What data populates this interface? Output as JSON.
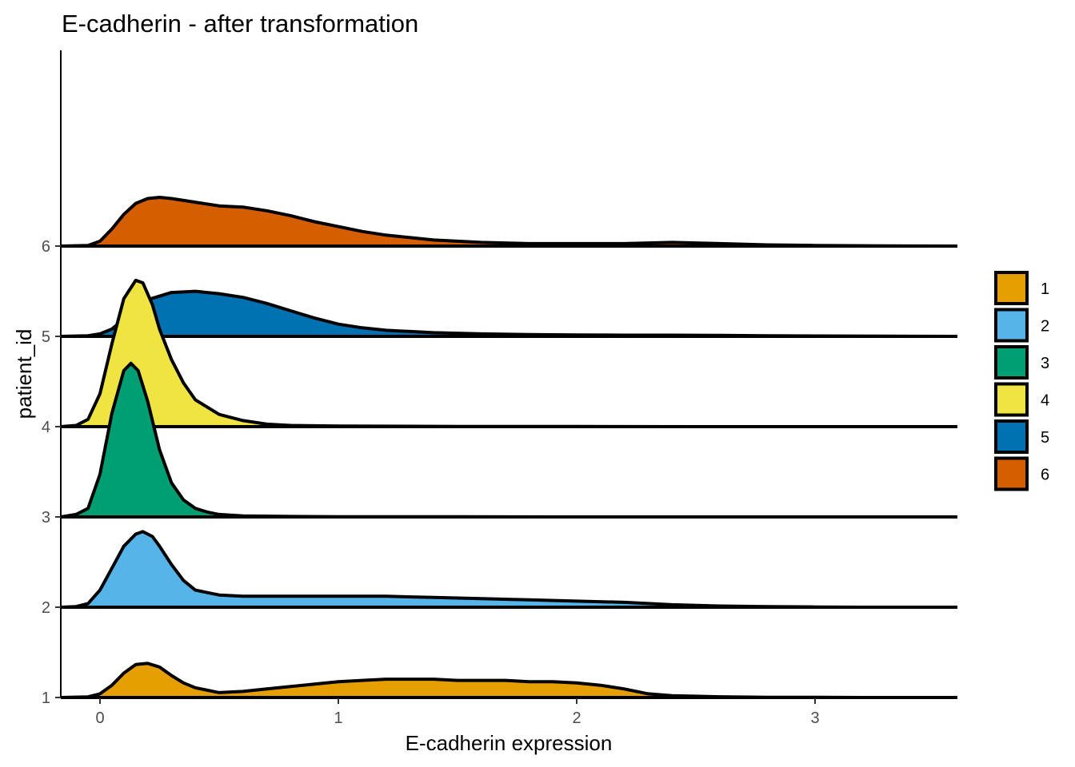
{
  "chart_data": {
    "type": "ridgeline",
    "title": "E-cadherin - after transformation",
    "xlabel": "E-cadherin expression",
    "ylabel": "patient_id",
    "xlim": [
      -0.17,
      3.6
    ],
    "x_ticks": [
      0,
      1,
      2,
      3
    ],
    "y_ticks": [
      "1",
      "2",
      "3",
      "4",
      "5",
      "6"
    ],
    "grid": false,
    "legend_position": "right",
    "series": [
      {
        "name": "1",
        "color": "#E69F00",
        "x": [
          -0.17,
          -0.05,
          0.0,
          0.05,
          0.1,
          0.15,
          0.2,
          0.25,
          0.3,
          0.35,
          0.4,
          0.5,
          0.6,
          0.7,
          0.8,
          0.9,
          1.0,
          1.1,
          1.2,
          1.3,
          1.4,
          1.5,
          1.6,
          1.7,
          1.8,
          1.9,
          2.0,
          2.1,
          2.2,
          2.3,
          2.4,
          2.6,
          2.8,
          3.0,
          3.2,
          3.4,
          3.6
        ],
        "y": [
          0,
          0.005,
          0.03,
          0.1,
          0.2,
          0.27,
          0.28,
          0.25,
          0.18,
          0.12,
          0.08,
          0.04,
          0.05,
          0.07,
          0.09,
          0.11,
          0.13,
          0.14,
          0.15,
          0.15,
          0.15,
          0.14,
          0.14,
          0.14,
          0.13,
          0.13,
          0.12,
          0.1,
          0.07,
          0.03,
          0.015,
          0.006,
          0.002,
          0.001,
          0,
          0,
          0
        ]
      },
      {
        "name": "2",
        "color": "#56B4E9",
        "x": [
          -0.17,
          -0.1,
          -0.05,
          0.0,
          0.05,
          0.1,
          0.15,
          0.18,
          0.22,
          0.25,
          0.3,
          0.35,
          0.4,
          0.5,
          0.6,
          0.8,
          1.0,
          1.2,
          1.4,
          1.6,
          1.8,
          2.0,
          2.2,
          2.4,
          2.6,
          2.8,
          3.0,
          3.2,
          3.4,
          3.6
        ],
        "y": [
          0,
          0.005,
          0.03,
          0.14,
          0.32,
          0.5,
          0.6,
          0.62,
          0.58,
          0.5,
          0.35,
          0.22,
          0.14,
          0.1,
          0.09,
          0.09,
          0.09,
          0.09,
          0.08,
          0.07,
          0.06,
          0.05,
          0.04,
          0.02,
          0.01,
          0.005,
          0.002,
          0,
          0,
          0
        ]
      },
      {
        "name": "3",
        "color": "#009E73",
        "x": [
          -0.17,
          -0.1,
          -0.05,
          0.0,
          0.05,
          0.1,
          0.13,
          0.16,
          0.2,
          0.25,
          0.3,
          0.35,
          0.4,
          0.45,
          0.5,
          0.6,
          0.8,
          1.0,
          1.5,
          2.0,
          2.5,
          3.0,
          3.6
        ],
        "y": [
          0,
          0.02,
          0.07,
          0.35,
          0.85,
          1.2,
          1.26,
          1.2,
          0.95,
          0.55,
          0.28,
          0.14,
          0.07,
          0.04,
          0.02,
          0.008,
          0.004,
          0.002,
          0.001,
          0,
          0,
          0,
          0
        ]
      },
      {
        "name": "4",
        "color": "#F0E442",
        "x": [
          -0.17,
          -0.1,
          -0.05,
          0.0,
          0.05,
          0.1,
          0.15,
          0.18,
          0.22,
          0.25,
          0.3,
          0.35,
          0.4,
          0.5,
          0.6,
          0.7,
          0.8,
          1.0,
          1.5,
          2.0,
          2.5,
          3.0,
          3.6
        ],
        "y": [
          0,
          0.01,
          0.06,
          0.27,
          0.68,
          1.05,
          1.2,
          1.18,
          1.0,
          0.8,
          0.55,
          0.36,
          0.22,
          0.1,
          0.05,
          0.02,
          0.01,
          0.005,
          0.002,
          0.001,
          0,
          0,
          0
        ]
      },
      {
        "name": "5",
        "color": "#0072B2",
        "x": [
          -0.17,
          -0.05,
          0.0,
          0.05,
          0.1,
          0.15,
          0.2,
          0.3,
          0.4,
          0.5,
          0.6,
          0.7,
          0.8,
          0.9,
          1.0,
          1.1,
          1.2,
          1.4,
          1.6,
          1.8,
          2.0,
          2.2,
          2.4,
          2.6,
          2.8,
          3.0,
          3.3,
          3.6
        ],
        "y": [
          0,
          0.005,
          0.02,
          0.06,
          0.14,
          0.23,
          0.3,
          0.36,
          0.37,
          0.35,
          0.32,
          0.27,
          0.21,
          0.15,
          0.1,
          0.07,
          0.05,
          0.03,
          0.02,
          0.015,
          0.012,
          0.01,
          0.01,
          0.008,
          0.005,
          0.003,
          0.001,
          0
        ]
      },
      {
        "name": "6",
        "color": "#D55E00",
        "x": [
          -0.17,
          -0.05,
          0.0,
          0.05,
          0.1,
          0.15,
          0.2,
          0.25,
          0.3,
          0.4,
          0.5,
          0.6,
          0.7,
          0.8,
          0.9,
          1.0,
          1.1,
          1.2,
          1.4,
          1.6,
          1.8,
          2.0,
          2.2,
          2.4,
          2.6,
          2.8,
          3.0,
          3.3,
          3.6
        ],
        "y": [
          0,
          0.005,
          0.04,
          0.14,
          0.26,
          0.35,
          0.39,
          0.4,
          0.39,
          0.36,
          0.33,
          0.32,
          0.29,
          0.25,
          0.2,
          0.16,
          0.12,
          0.09,
          0.05,
          0.03,
          0.02,
          0.02,
          0.02,
          0.03,
          0.02,
          0.01,
          0.005,
          0.001,
          0
        ]
      }
    ]
  }
}
